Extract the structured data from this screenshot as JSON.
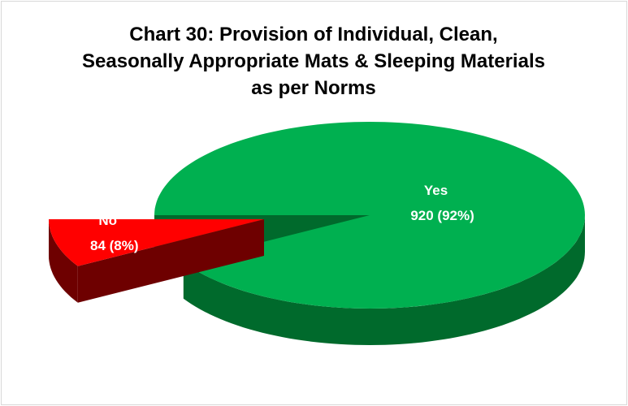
{
  "chart_data": {
    "type": "pie3d",
    "title": "Chart 30: Provision of Individual, Clean, Seasonally Appropriate Mats & Sleeping Materials as per Norms",
    "categories": [
      "Yes",
      "No"
    ],
    "values": [
      920,
      84
    ],
    "value_labels": [
      "920 (92%)",
      "84 (8%)"
    ],
    "colors": [
      "#00b050",
      "#ff0000"
    ],
    "side_colors": [
      "#006a2c",
      "#6e0000"
    ]
  }
}
